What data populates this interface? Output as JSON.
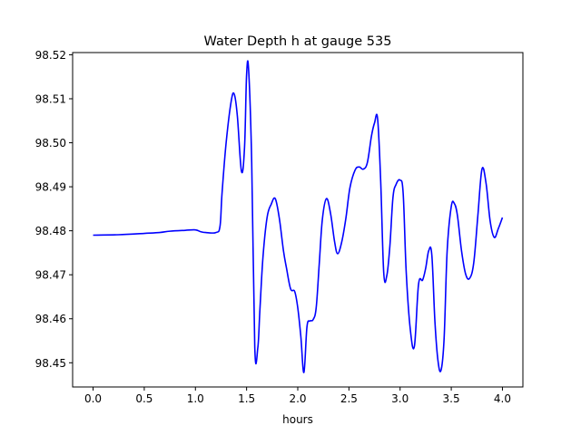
{
  "chart_data": {
    "type": "line",
    "title": "Water Depth h at gauge 535",
    "xlabel": "hours",
    "ylabel": "",
    "xlim": [
      -0.2,
      4.2
    ],
    "ylim": [
      98.4445,
      98.5205
    ],
    "grid": false,
    "legend": "none",
    "x_ticks": [
      0.0,
      0.5,
      1.0,
      1.5,
      2.0,
      2.5,
      3.0,
      3.5,
      4.0
    ],
    "x_tick_labels": [
      "0.0",
      "0.5",
      "1.0",
      "1.5",
      "2.0",
      "2.5",
      "3.0",
      "3.5",
      "4.0"
    ],
    "y_ticks": [
      98.45,
      98.46,
      98.47,
      98.48,
      98.49,
      98.5,
      98.51,
      98.52
    ],
    "y_tick_labels": [
      "98.45",
      "98.46",
      "98.47",
      "98.48",
      "98.49",
      "98.50",
      "98.51",
      "98.52"
    ],
    "series": [
      {
        "color": "#0000ff",
        "x": [
          0.0,
          0.25,
          0.5,
          0.65,
          0.75,
          0.9,
          1.0,
          1.05,
          1.1,
          1.2,
          1.24,
          1.26,
          1.3,
          1.35,
          1.38,
          1.41,
          1.45,
          1.48,
          1.5,
          1.52,
          1.55,
          1.58,
          1.61,
          1.63,
          1.66,
          1.7,
          1.74,
          1.78,
          1.82,
          1.86,
          1.89,
          1.93,
          1.97,
          2.0,
          2.03,
          2.06,
          2.09,
          2.12,
          2.15,
          2.18,
          2.21,
          2.24,
          2.28,
          2.32,
          2.36,
          2.39,
          2.43,
          2.47,
          2.51,
          2.56,
          2.6,
          2.64,
          2.68,
          2.72,
          2.75,
          2.78,
          2.81,
          2.84,
          2.87,
          2.9,
          2.93,
          2.96,
          3.0,
          3.03,
          3.06,
          3.1,
          3.14,
          3.18,
          3.22,
          3.25,
          3.28,
          3.31,
          3.34,
          3.37,
          3.4,
          3.43,
          3.46,
          3.5,
          3.53,
          3.56,
          3.6,
          3.64,
          3.68,
          3.72,
          3.76,
          3.8,
          3.84,
          3.88,
          3.92,
          3.96,
          4.0
        ],
        "y": [
          98.479,
          98.4791,
          98.4794,
          98.4796,
          98.4799,
          98.4801,
          98.4802,
          98.4798,
          98.4796,
          98.4796,
          98.481,
          98.4885,
          98.5,
          98.5095,
          98.511,
          98.506,
          98.4935,
          98.499,
          98.5155,
          98.5165,
          98.4955,
          98.4535,
          98.4535,
          98.462,
          98.474,
          98.483,
          98.486,
          98.4873,
          98.4828,
          98.4755,
          98.4715,
          98.4668,
          98.4662,
          98.4625,
          98.456,
          98.4478,
          98.4582,
          98.4595,
          98.4598,
          98.4625,
          98.4725,
          98.4825,
          98.4873,
          98.484,
          98.4775,
          98.4748,
          98.4775,
          98.4828,
          98.4898,
          98.4938,
          98.4945,
          98.494,
          98.4955,
          98.5015,
          98.5045,
          98.5055,
          98.4915,
          98.4705,
          98.4698,
          98.4765,
          98.4875,
          98.4905,
          98.4915,
          98.4885,
          98.4705,
          98.4575,
          98.4538,
          98.4678,
          98.4688,
          98.4715,
          98.4755,
          98.4745,
          98.4595,
          98.4505,
          98.4483,
          98.4555,
          98.4755,
          98.4855,
          98.4862,
          98.4835,
          98.4755,
          98.4702,
          98.4692,
          98.4728,
          98.4835,
          98.494,
          98.4908,
          98.4822,
          98.4785,
          98.4805,
          98.483
        ]
      }
    ]
  }
}
